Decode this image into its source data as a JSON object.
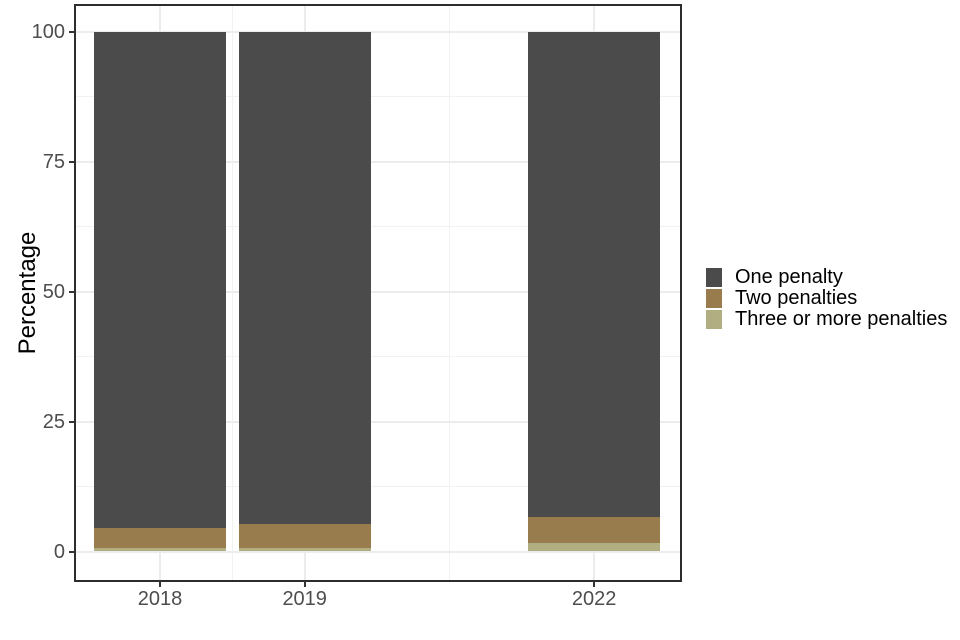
{
  "chart_data": {
    "type": "bar",
    "stacked": true,
    "orientation": "vertical",
    "title": "",
    "xlabel": "",
    "ylabel": "Percentage",
    "ylim": [
      0,
      100
    ],
    "y_major_ticks": [
      0,
      25,
      50,
      75,
      100
    ],
    "y_tick_labels": [
      "0",
      "25",
      "50",
      "75",
      "100"
    ],
    "y_minor_ticks": [
      12.5,
      37.5,
      62.5,
      87.5
    ],
    "categories": [
      "2018",
      "2019",
      "2022"
    ],
    "x_units": [
      1,
      2,
      4
    ],
    "x_minor_units": [
      1.5,
      3
    ],
    "grid": "major+minor horizontal and vertical, light gray",
    "legend_position": "right",
    "series": [
      {
        "name": "One penalty",
        "color": "#4b4b4b",
        "values": [
          95.5,
          94.7,
          93.4
        ]
      },
      {
        "name": "Two penalties",
        "color": "#987c4d",
        "values": [
          3.8,
          4.7,
          5.0
        ]
      },
      {
        "name": "Three or more penalties",
        "color": "#b1af81",
        "values": [
          0.7,
          0.6,
          1.6
        ]
      }
    ]
  },
  "colors": {
    "background": "#ffffff",
    "panel_background": "#ffffff",
    "panel_border": "#2d2d2d",
    "grid_major": "#ececec",
    "grid_minor": "#f2f2f2",
    "axis_text": "#4d4d4d",
    "tick_mark": "#333333"
  }
}
